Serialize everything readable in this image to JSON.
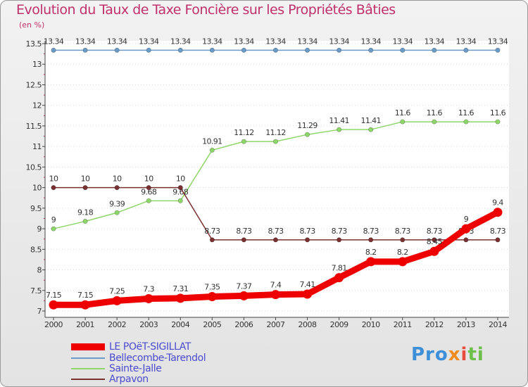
{
  "header": {
    "title": "Evolution du Taux de Taxe Foncière sur les Propriétés Bâties",
    "unit": "(en %)"
  },
  "chart_data": {
    "type": "line",
    "title": "Evolution du Taux de Taxe Foncière sur les Propriétés Bâties",
    "ylabel": "(en %)",
    "xlabel": "",
    "ylim": [
      7,
      13.5
    ],
    "yticks": [
      7,
      7.5,
      8,
      8.5,
      9,
      9.5,
      10,
      10.5,
      11,
      11.5,
      12,
      12.5,
      13,
      13.5
    ],
    "ytick_labels": [
      "7",
      "7.5",
      "8",
      "8.5",
      "9",
      "9.5",
      "10",
      "10.5",
      "11",
      "11.5",
      "12",
      "12.5",
      "13",
      "13.5"
    ],
    "grid": "horizontal",
    "categories": [
      "2000",
      "2001",
      "2002",
      "2003",
      "2004",
      "2005",
      "2006",
      "2007",
      "2008",
      "2009",
      "2010",
      "2011",
      "2012",
      "2013",
      "2014"
    ],
    "series": [
      {
        "name": "Bellecombe-Tarendol",
        "color": "#6a9bc7",
        "values": [
          13.34,
          13.34,
          13.34,
          13.34,
          13.34,
          13.34,
          13.34,
          13.34,
          13.34,
          13.34,
          13.34,
          13.34,
          13.34,
          13.34,
          13.34
        ],
        "labels": [
          "13.34",
          "13.34",
          "13.34",
          "13.34",
          "13.34",
          "13.34",
          "13.34",
          "13.34",
          "13.34",
          "13.34",
          "13.34",
          "13.34",
          "13.34",
          "13.34",
          "13.34"
        ]
      },
      {
        "name": "Sainte-Jalle",
        "color": "#8fd66a",
        "values": [
          9,
          9.18,
          9.39,
          9.68,
          9.68,
          10.91,
          11.12,
          11.12,
          11.29,
          11.41,
          11.41,
          11.6,
          11.6,
          11.6,
          11.6
        ],
        "labels": [
          "9",
          "9.18",
          "9.39",
          "9.68",
          "9.68",
          "10.91",
          "11.12",
          "11.12",
          "11.29",
          "11.41",
          "11.41",
          "11.6",
          "11.6",
          "11.6",
          "11.6"
        ]
      },
      {
        "name": "Arpavon",
        "color": "#7a3030",
        "values": [
          10,
          10,
          10,
          10,
          10,
          8.73,
          8.73,
          8.73,
          8.73,
          8.73,
          8.73,
          8.73,
          8.73,
          8.73,
          8.73
        ],
        "labels": [
          "10",
          "10",
          "10",
          "10",
          "10",
          "8.73",
          "8.73",
          "8.73",
          "8.73",
          "8.73",
          "8.73",
          "8.73",
          "8.73",
          "8.73",
          "8.73"
        ]
      },
      {
        "name": "LE POëT-SIGILLAT",
        "color": "#ee0000",
        "values": [
          7.15,
          7.15,
          7.25,
          7.3,
          7.31,
          7.35,
          7.37,
          7.4,
          7.41,
          7.81,
          8.2,
          8.2,
          8.45,
          9,
          9.4
        ],
        "labels": [
          "7.15",
          "7.15",
          "7.25",
          "7.3",
          "7.31",
          "7.35",
          "7.37",
          "7.4",
          "7.41",
          "7.81",
          "8.2",
          "8.2",
          "8.45",
          "9",
          "9.4"
        ]
      }
    ],
    "legend": [
      "LE POëT-SIGILLAT",
      "Bellecombe-Tarendol",
      "Sainte-Jalle",
      "Arpavon"
    ]
  },
  "legend": {
    "items": [
      {
        "label": "LE POëT-SIGILLAT",
        "color": "#ee0000"
      },
      {
        "label": "Bellecombe-Tarendol",
        "color": "#6a9bc7"
      },
      {
        "label": "Sainte-Jalle",
        "color": "#8fd66a"
      },
      {
        "label": "Arpavon",
        "color": "#7a3030"
      }
    ]
  },
  "logo": {
    "p1": "Pro",
    "p2": "x",
    "p3": "i",
    "p4": "ti"
  }
}
